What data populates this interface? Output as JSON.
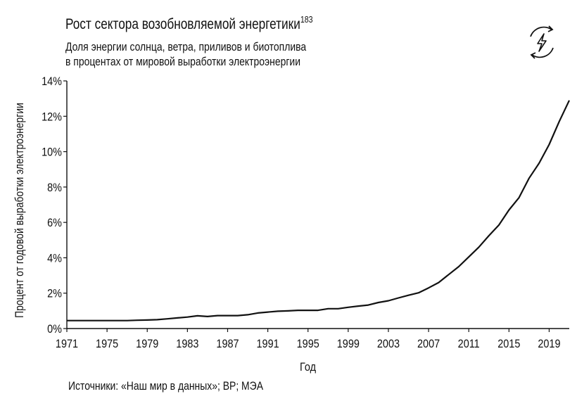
{
  "header": {
    "title": "Рост сектора возобновляемой энергетики",
    "title_ref": "183",
    "subtitle_line1": "Доля энергии солнца, ветра, приливов и биотоплива",
    "subtitle_line2": "в процентах от мировой выработки электроэнергии"
  },
  "icon": {
    "name": "renewable-energy-lightning-icon"
  },
  "footer": {
    "source": "Источники: «Наш мир в данных»; BP; МЭА"
  },
  "chart_data": {
    "type": "line",
    "xlabel": "Год",
    "ylabel": "Процент от годовой выработки электроэнергии",
    "xlim": [
      1971,
      2021
    ],
    "ylim": [
      0,
      14
    ],
    "x_ticks": [
      1971,
      1975,
      1979,
      1983,
      1987,
      1991,
      1995,
      1999,
      2003,
      2007,
      2011,
      2015,
      2019
    ],
    "y_ticks": [
      0,
      2,
      4,
      6,
      8,
      10,
      12,
      14
    ],
    "y_tick_labels": [
      "0%",
      "2%",
      "4%",
      "6%",
      "8%",
      "10%",
      "12%",
      "14%"
    ],
    "grid": false,
    "color": "#111111",
    "series": [
      {
        "x": [
          1971,
          1972,
          1973,
          1974,
          1975,
          1976,
          1977,
          1978,
          1979,
          1980,
          1981,
          1982,
          1983,
          1984,
          1985,
          1986,
          1987,
          1988,
          1989,
          1990,
          1991,
          1992,
          1993,
          1994,
          1995,
          1996,
          1997,
          1998,
          1999,
          2000,
          2001,
          2002,
          2003,
          2004,
          2005,
          2006,
          2007,
          2008,
          2009,
          2010,
          2011,
          2012,
          2013,
          2014,
          2015,
          2016,
          2017,
          2018,
          2019,
          2020,
          2021
        ],
        "y": [
          0.45,
          0.45,
          0.45,
          0.45,
          0.45,
          0.45,
          0.45,
          0.47,
          0.48,
          0.5,
          0.55,
          0.6,
          0.65,
          0.72,
          0.68,
          0.73,
          0.73,
          0.73,
          0.78,
          0.88,
          0.93,
          0.98,
          1.0,
          1.03,
          1.03,
          1.03,
          1.12,
          1.12,
          1.2,
          1.27,
          1.33,
          1.47,
          1.57,
          1.73,
          1.88,
          2.02,
          2.3,
          2.6,
          3.05,
          3.5,
          4.05,
          4.6,
          5.25,
          5.85,
          6.7,
          7.4,
          8.5,
          9.35,
          10.4,
          11.7,
          12.9
        ]
      }
    ]
  }
}
